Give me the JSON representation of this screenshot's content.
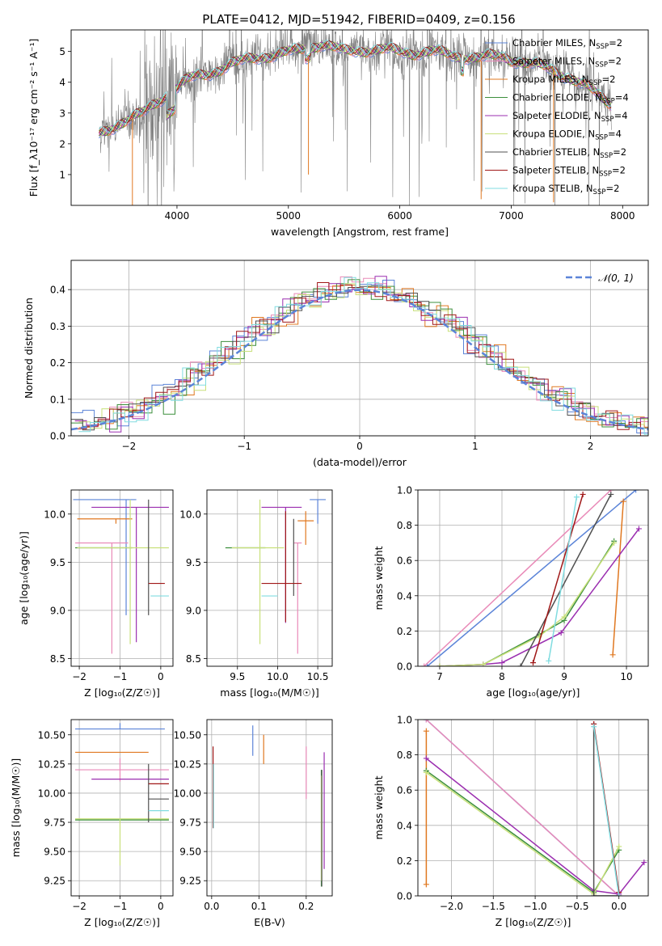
{
  "title": "PLATE=0412, MJD=51942, FIBERID=0409, z=0.156",
  "colors": {
    "Chabrier MILES": "#5b84d8",
    "Salpeter MILES": "#e98ab8",
    "Kroupa MILES": "#e07820",
    "Chabrier ELODIE": "#3c8f3c",
    "Salpeter ELODIE": "#9b2fb0",
    "Kroupa ELODIE": "#c8e07a",
    "Chabrier STELIB": "#505050",
    "Salpeter STELIB": "#a01818",
    "Kroupa STELIB": "#80dce0",
    "data": "#808080"
  },
  "chart_data": [
    {
      "id": "spectrum",
      "type": "line",
      "xlabel": "wavelength [Angstrom, rest frame]",
      "ylabel": "Flux [f_λ10⁻¹⁷ erg cm⁻² s⁻¹ A⁻¹]",
      "xlim": [
        3050,
        8230
      ],
      "ylim": [
        0,
        5.7
      ],
      "xticks": [
        4000,
        5000,
        6000,
        7000,
        8000
      ],
      "yticks": [
        1,
        2,
        3,
        4,
        5
      ],
      "legend_position": "top-right",
      "legend": [
        {
          "model": "Chabrier MILES",
          "label": "Chabrier MILES, N",
          "sub": "SSP",
          "suffix": "=2"
        },
        {
          "model": "Salpeter MILES",
          "label": "Salpeter MILES, N",
          "sub": "SSP",
          "suffix": "=2"
        },
        {
          "model": "Kroupa MILES",
          "label": "Kroupa MILES, N",
          "sub": "SSP",
          "suffix": "=2"
        },
        {
          "model": "Chabrier ELODIE",
          "label": "Chabrier ELODIE, N",
          "sub": "SSP",
          "suffix": "=4"
        },
        {
          "model": "Salpeter ELODIE",
          "label": "Salpeter ELODIE, N",
          "sub": "SSP",
          "suffix": "=4"
        },
        {
          "model": "Kroupa ELODIE",
          "label": "Kroupa ELODIE, N",
          "sub": "SSP",
          "suffix": "=4"
        },
        {
          "model": "Chabrier STELIB",
          "label": "Chabrier STELIB, N",
          "sub": "SSP",
          "suffix": "=2"
        },
        {
          "model": "Salpeter STELIB",
          "label": "Salpeter STELIB, N",
          "sub": "SSP",
          "suffix": "=2"
        },
        {
          "model": "Kroupa STELIB",
          "label": "Kroupa STELIB, N",
          "sub": "SSP",
          "suffix": "=2"
        }
      ],
      "continuum": [
        [
          3300,
          2.3
        ],
        [
          3500,
          2.7
        ],
        [
          3700,
          3.0
        ],
        [
          3800,
          3.3
        ],
        [
          3950,
          3.7
        ],
        [
          4100,
          4.1
        ],
        [
          4300,
          4.3
        ],
        [
          4500,
          4.6
        ],
        [
          4700,
          4.8
        ],
        [
          4900,
          4.9
        ],
        [
          5100,
          5.05
        ],
        [
          5300,
          5.25
        ],
        [
          5500,
          5.0
        ],
        [
          5700,
          5.05
        ],
        [
          5900,
          5.05
        ],
        [
          6100,
          4.95
        ],
        [
          6300,
          5.0
        ],
        [
          6500,
          4.85
        ],
        [
          6700,
          4.8
        ],
        [
          6900,
          4.85
        ],
        [
          7100,
          4.65
        ],
        [
          7300,
          4.5
        ],
        [
          7500,
          4.2
        ],
        [
          7700,
          3.8
        ],
        [
          7820,
          3.5
        ],
        [
          7900,
          3.3
        ]
      ]
    },
    {
      "id": "residuals",
      "type": "histogram",
      "xlabel": "(data-model)/error",
      "ylabel": "Normed distribution",
      "xlim": [
        -2.5,
        2.5
      ],
      "ylim": [
        0,
        0.48
      ],
      "xticks": [
        -2,
        -1,
        0,
        1,
        2
      ],
      "yticks": [
        0.0,
        0.1,
        0.2,
        0.3,
        0.4
      ],
      "grid": true,
      "legend_position": "top-right",
      "reference_curve": {
        "label": "𝒩(0, 1)",
        "mean": 0,
        "sigma": 1
      }
    },
    {
      "id": "age_vs_Z",
      "type": "errorbar",
      "xlabel": "Z [log₁₀(Z/Z☉)]",
      "ylabel": "age  [log₁₀(age/yr)]",
      "xlim": [
        -2.2,
        0.3
      ],
      "ylim": [
        8.42,
        10.25
      ],
      "xticks": [
        -2,
        -1,
        0
      ],
      "yticks": [
        8.5,
        9.0,
        9.5,
        10.0
      ],
      "grid": true,
      "points": [
        {
          "model": "Chabrier MILES",
          "x": -0.85,
          "xerr": [
            1.3,
            0.25
          ],
          "y": 10.15,
          "yerr": [
            1.2,
            0.0
          ]
        },
        {
          "model": "Salpeter MILES",
          "x": -1.2,
          "xerr": [
            0.9,
            0.4
          ],
          "y": 9.7,
          "yerr": [
            1.15,
            0.0
          ]
        },
        {
          "model": "Kroupa MILES",
          "x": -1.1,
          "xerr": [
            0.95,
            0.4
          ],
          "y": 9.95,
          "yerr": [
            0.05,
            0.0
          ]
        },
        {
          "model": "Chabrier ELODIE",
          "x": -1.2,
          "xerr": [
            0.9,
            0.5
          ],
          "y": 9.65,
          "yerr": [
            0.0,
            0.0
          ]
        },
        {
          "model": "Salpeter ELODIE",
          "x": -0.6,
          "xerr": [
            1.1,
            0.8
          ],
          "y": 10.07,
          "yerr": [
            1.4,
            0.0
          ]
        },
        {
          "model": "Kroupa ELODIE",
          "x": -0.75,
          "xerr": [
            1.3,
            0.95
          ],
          "y": 9.65,
          "yerr": [
            1.0,
            0.5
          ]
        },
        {
          "model": "Chabrier STELIB",
          "x": -0.3,
          "xerr": [
            0.0,
            0.0
          ],
          "y": 9.65,
          "yerr": [
            0.7,
            0.5
          ]
        },
        {
          "model": "Salpeter STELIB",
          "x": 0.0,
          "xerr": [
            0.3,
            0.1
          ],
          "y": 9.28,
          "yerr": [
            0.0,
            0.0
          ]
        },
        {
          "model": "Kroupa STELIB",
          "x": -0.25,
          "xerr": [
            0.0,
            0.45
          ],
          "y": 9.15,
          "yerr": [
            0.0,
            0.0
          ]
        }
      ]
    },
    {
      "id": "age_vs_mass",
      "type": "errorbar",
      "xlabel": "mass [log₁₀(M/M☉)]",
      "ylabel": "",
      "xlim": [
        9.12,
        10.68
      ],
      "ylim": [
        8.42,
        10.25
      ],
      "xticks": [
        9.5,
        10.0,
        10.5
      ],
      "yticks": [
        8.5,
        9.0,
        9.5,
        10.0
      ],
      "grid": true,
      "points": [
        {
          "model": "Chabrier MILES",
          "x": 10.5,
          "xerr": [
            0.1,
            0.1
          ],
          "y": 10.15,
          "yerr": [
            0.25,
            0.0
          ]
        },
        {
          "model": "Salpeter MILES",
          "x": 10.25,
          "xerr": [
            0.05,
            0.05
          ],
          "y": 9.7,
          "yerr": [
            1.15,
            0.0
          ]
        },
        {
          "model": "Kroupa MILES",
          "x": 10.35,
          "xerr": [
            0.1,
            0.1
          ],
          "y": 9.93,
          "yerr": [
            0.25,
            0.1
          ]
        },
        {
          "model": "Chabrier ELODIE",
          "x": 9.75,
          "xerr": [
            0.4,
            0.1
          ],
          "y": 9.65,
          "yerr": [
            0.0,
            0.0
          ]
        },
        {
          "model": "Salpeter ELODIE",
          "x": 10.1,
          "xerr": [
            0.3,
            0.2
          ],
          "y": 10.07,
          "yerr": [
            1.2,
            0.0
          ]
        },
        {
          "model": "Kroupa ELODIE",
          "x": 9.78,
          "xerr": [
            0.35,
            0.3
          ],
          "y": 9.65,
          "yerr": [
            1.0,
            0.5
          ]
        },
        {
          "model": "Chabrier STELIB",
          "x": 10.2,
          "xerr": [
            0.0,
            0.0
          ],
          "y": 9.65,
          "yerr": [
            0.5,
            0.3
          ]
        },
        {
          "model": "Salpeter STELIB",
          "x": 10.1,
          "xerr": [
            0.3,
            0.2
          ],
          "y": 9.28,
          "yerr": [
            0.4,
            0.75
          ]
        },
        {
          "model": "Kroupa STELIB",
          "x": 9.9,
          "xerr": [
            0.1,
            0.1
          ],
          "y": 9.15,
          "yerr": [
            0.0,
            0.0
          ]
        }
      ]
    },
    {
      "id": "massweight_vs_age",
      "type": "line",
      "xlabel": "age  [log₁₀(age/yr)]",
      "ylabel": "mass weight",
      "xlim": [
        6.65,
        10.35
      ],
      "ylim": [
        0,
        1.0
      ],
      "xticks": [
        7,
        8,
        9,
        10
      ],
      "yticks": [
        0.0,
        0.2,
        0.4,
        0.6,
        0.8,
        1.0
      ],
      "grid": true,
      "series": [
        {
          "model": "Chabrier MILES",
          "x": [
            6.8,
            10.15
          ],
          "y": [
            0.0,
            1.0
          ]
        },
        {
          "model": "Salpeter MILES",
          "x": [
            6.75,
            9.75
          ],
          "y": [
            0.0,
            1.0
          ]
        },
        {
          "model": "Kroupa MILES",
          "x": [
            9.78,
            9.95
          ],
          "y": [
            0.065,
            0.935
          ]
        },
        {
          "model": "Chabrier ELODIE",
          "x": [
            7.0,
            7.7,
            8.6,
            9.0,
            9.8
          ],
          "y": [
            0.0,
            0.01,
            0.18,
            0.26,
            0.71
          ]
        },
        {
          "model": "Salpeter ELODIE",
          "x": [
            7.0,
            7.7,
            8.0,
            8.95,
            10.2
          ],
          "y": [
            0.0,
            0.01,
            0.02,
            0.19,
            0.78
          ]
        },
        {
          "model": "Kroupa ELODIE",
          "x": [
            7.0,
            7.7,
            8.6,
            9.0,
            9.8
          ],
          "y": [
            0.0,
            0.01,
            0.17,
            0.28,
            0.7
          ]
        },
        {
          "model": "Chabrier STELIB",
          "x": [
            8.3,
            9.75
          ],
          "y": [
            0.0,
            0.975
          ]
        },
        {
          "model": "Salpeter STELIB",
          "x": [
            8.5,
            9.3
          ],
          "y": [
            0.02,
            0.975
          ]
        },
        {
          "model": "Kroupa STELIB",
          "x": [
            8.75,
            9.2
          ],
          "y": [
            0.03,
            0.96
          ]
        }
      ]
    },
    {
      "id": "mass_vs_Z",
      "type": "errorbar",
      "xlabel": "Z [log₁₀(Z/Z☉)]",
      "ylabel": "mass [log₁₀(M/M☉)]",
      "xlim": [
        -2.2,
        0.3
      ],
      "ylim": [
        9.12,
        10.63
      ],
      "xticks": [
        -2,
        -1,
        0
      ],
      "yticks": [
        9.25,
        9.5,
        9.75,
        10.0,
        10.25,
        10.5
      ],
      "grid": true,
      "points": [
        {
          "model": "Chabrier MILES",
          "x": -1.0,
          "xerr": [
            1.1,
            1.1
          ],
          "y": 10.55,
          "yerr": [
            0.0,
            0.05
          ]
        },
        {
          "model": "Salpeter MILES",
          "x": -1.0,
          "xerr": [
            1.1,
            1.2
          ],
          "y": 10.2,
          "yerr": [
            0.1,
            0.1
          ]
        },
        {
          "model": "Kroupa MILES",
          "x": -1.2,
          "xerr": [
            0.9,
            0.9
          ],
          "y": 10.35,
          "yerr": [
            0.0,
            0.0
          ]
        },
        {
          "model": "Chabrier ELODIE",
          "x": -1.0,
          "xerr": [
            1.1,
            1.2
          ],
          "y": 9.77,
          "yerr": [
            0.0,
            0.0
          ]
        },
        {
          "model": "Salpeter ELODIE",
          "x": -0.7,
          "xerr": [
            1.0,
            0.9
          ],
          "y": 10.12,
          "yerr": [
            0.0,
            0.0
          ]
        },
        {
          "model": "Kroupa ELODIE",
          "x": -1.0,
          "xerr": [
            1.1,
            1.2
          ],
          "y": 9.78,
          "yerr": [
            0.4,
            0.0
          ]
        },
        {
          "model": "Chabrier STELIB",
          "x": -0.3,
          "xerr": [
            0.0,
            0.5
          ],
          "y": 9.95,
          "yerr": [
            0.2,
            0.3
          ]
        },
        {
          "model": "Salpeter STELIB",
          "x": -0.3,
          "xerr": [
            0.0,
            0.5
          ],
          "y": 10.08,
          "yerr": [
            0.0,
            0.0
          ]
        },
        {
          "model": "Kroupa STELIB",
          "x": -0.3,
          "xerr": [
            0.0,
            0.5
          ],
          "y": 9.85,
          "yerr": [
            0.0,
            0.0
          ]
        }
      ]
    },
    {
      "id": "mass_vs_ebv",
      "type": "errorbar",
      "xlabel": "E(B-V)",
      "ylabel": "",
      "xlim": [
        -0.01,
        0.255
      ],
      "ylim": [
        9.12,
        10.63
      ],
      "xticks": [
        0.0,
        0.1,
        0.2
      ],
      "yticks": [
        9.25,
        9.5,
        9.75,
        10.0,
        10.25,
        10.5
      ],
      "grid": true,
      "points": [
        {
          "model": "Chabrier MILES",
          "x": 0.087,
          "xerr": [
            0.0,
            0.0
          ],
          "y": 10.45,
          "yerr": [
            0.13,
            0.13
          ]
        },
        {
          "model": "Salpeter MILES",
          "x": 0.2,
          "xerr": [
            0.0,
            0.0
          ],
          "y": 10.2,
          "yerr": [
            0.25,
            0.2
          ]
        },
        {
          "model": "Kroupa MILES",
          "x": 0.11,
          "xerr": [
            0.0,
            0.0
          ],
          "y": 10.35,
          "yerr": [
            0.1,
            0.15
          ]
        },
        {
          "model": "Chabrier ELODIE",
          "x": 0.232,
          "xerr": [
            0.0,
            0.0
          ],
          "y": 9.7,
          "yerr": [
            0.5,
            0.5
          ]
        },
        {
          "model": "Salpeter ELODIE",
          "x": 0.238,
          "xerr": [
            0.0,
            0.0
          ],
          "y": 10.0,
          "yerr": [
            0.65,
            0.35
          ]
        },
        {
          "model": "Kroupa ELODIE",
          "x": 0.232,
          "xerr": [
            0.0,
            0.0
          ],
          "y": 9.75,
          "yerr": [
            0.5,
            0.4
          ]
        },
        {
          "model": "Chabrier STELIB",
          "x": 0.233,
          "xerr": [
            0.0,
            0.0
          ],
          "y": 9.8,
          "yerr": [
            0.6,
            0.4
          ]
        },
        {
          "model": "Salpeter STELIB",
          "x": 0.003,
          "xerr": [
            0.0,
            0.0
          ],
          "y": 10.1,
          "yerr": [
            0.4,
            0.3
          ]
        },
        {
          "model": "Kroupa STELIB",
          "x": 0.004,
          "xerr": [
            0.0,
            0.0
          ],
          "y": 9.85,
          "yerr": [
            0.15,
            0.4
          ]
        }
      ]
    },
    {
      "id": "massweight_vs_Z",
      "type": "line",
      "xlabel": "Z [log₁₀(Z/Z☉)]",
      "ylabel": "mass weight",
      "xlim": [
        -2.4,
        0.35
      ],
      "ylim": [
        0,
        1.0
      ],
      "xticks": [
        -2.0,
        -1.5,
        -1.0,
        -0.5,
        0.0
      ],
      "yticks": [
        0.0,
        0.2,
        0.4,
        0.6,
        0.8,
        1.0
      ],
      "grid": true,
      "series": [
        {
          "model": "Chabrier MILES",
          "x": [
            -2.3,
            0.0
          ],
          "y": [
            1.0,
            0.0
          ]
        },
        {
          "model": "Salpeter MILES",
          "x": [
            -2.3,
            0.0
          ],
          "y": [
            1.0,
            0.0
          ]
        },
        {
          "model": "Kroupa MILES",
          "x": [
            -2.3,
            -2.3
          ],
          "y": [
            0.935,
            0.065
          ]
        },
        {
          "model": "Chabrier ELODIE",
          "x": [
            -2.3,
            -0.3,
            0.0
          ],
          "y": [
            0.71,
            0.02,
            0.26
          ]
        },
        {
          "model": "Salpeter ELODIE",
          "x": [
            -2.3,
            -0.3,
            0.0,
            0.3
          ],
          "y": [
            0.78,
            0.03,
            0.01,
            0.19
          ]
        },
        {
          "model": "Kroupa ELODIE",
          "x": [
            -2.3,
            -0.3,
            0.0
          ],
          "y": [
            0.7,
            0.01,
            0.28
          ]
        },
        {
          "model": "Chabrier STELIB",
          "x": [
            -0.3,
            -0.3,
            0.0
          ],
          "y": [
            0.975,
            0.0,
            0.0
          ]
        },
        {
          "model": "Salpeter STELIB",
          "x": [
            -0.3,
            0.0
          ],
          "y": [
            0.975,
            0.02
          ]
        },
        {
          "model": "Kroupa STELIB",
          "x": [
            -0.3,
            0.0
          ],
          "y": [
            0.96,
            0.0
          ]
        }
      ]
    }
  ]
}
